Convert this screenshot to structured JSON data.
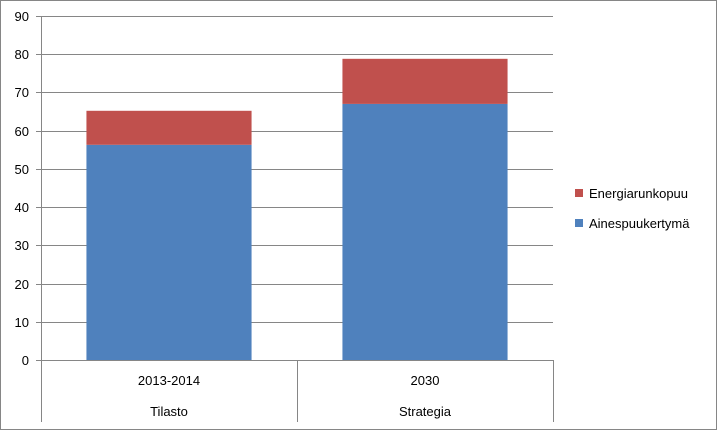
{
  "chart_data": {
    "type": "bar",
    "stacked": true,
    "title": "",
    "xlabel": "",
    "ylabel": "",
    "ylim": [
      0,
      90
    ],
    "ytick_step": 10,
    "grid": true,
    "legend_position": "right",
    "categories": [
      {
        "top": "2013-2014",
        "bottom": "Tilasto"
      },
      {
        "top": "2030",
        "bottom": "Strategia"
      }
    ],
    "series": [
      {
        "name": "Ainespuukertymä",
        "color": "#4f81bd",
        "values": [
          56.3,
          67.0
        ]
      },
      {
        "name": "Energiarunkopuu",
        "color": "#c0504d",
        "values": [
          8.9,
          11.8
        ]
      }
    ],
    "legend_order": [
      1,
      0
    ]
  }
}
